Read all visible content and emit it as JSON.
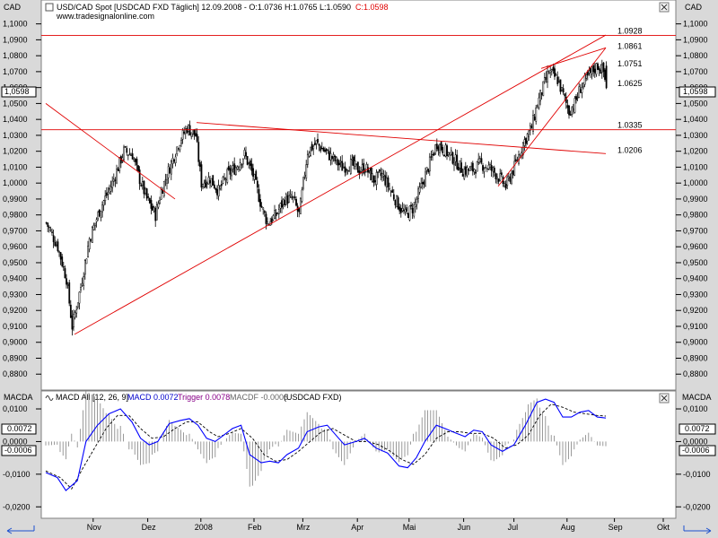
{
  "colors": {
    "up_candle": "#ffffff",
    "down_candle": "#000000",
    "trendline": "#e00000",
    "macd_line": "#0000ff",
    "trigger_line": "#000000",
    "histogram": "#808080",
    "hline": "#e00000"
  },
  "icons": {
    "nav_left": "left-arrow-icon",
    "nav_right": "right-arrow-icon",
    "indicator": "wave-icon"
  },
  "price_panel": {
    "axis_code_left": "CAD",
    "axis_code_right": "CAD",
    "title": "USD/CAD Spot [USDCAD FXD  Täglich] 12.09.2008 - O:1.0736 H:1.0765 L:1.0590",
    "close_label": "C:1.0598",
    "website": "www.tradesignalonline.com",
    "last_value": "1,0598",
    "hline_labels": [
      "1.0928",
      "1.0335"
    ],
    "trendline_labels": [
      "1.0861",
      "1.0751",
      "1.0625",
      "1.0206"
    ]
  },
  "macd_panel": {
    "axis_code_left": "MACDA",
    "axis_code_right": "MACDA",
    "title_prefix": "MACD All [12, 26, 9]",
    "macd_label": "MACD 0.0072",
    "trigger_label": "Trigger 0.0078",
    "macdf_label": "MACDF -0.0006",
    "symbol": "(USDCAD FXD)",
    "last_macd": "0.0072",
    "last_hist": "-0.0006"
  },
  "chart_data": [
    {
      "type": "candlestick",
      "title": "USD/CAD Spot [USDCAD FXD  Täglich] 12.09.2008",
      "ohlc_last": {
        "open": 1.0736,
        "high": 1.0765,
        "low": 1.059,
        "close": 1.0598
      },
      "ylim": [
        0.87,
        1.115
      ],
      "yticks": [
        "1,1000",
        "1,0900",
        "1,0800",
        "1,0700",
        "1,0600",
        "1,0500",
        "1,0400",
        "1,0300",
        "1,0200",
        "1,0100",
        "1,0000",
        "0,9900",
        "0,9800",
        "0,9700",
        "0,9600",
        "0,9500",
        "0,9400",
        "0,9300",
        "0,9200",
        "0,9100",
        "0,9000",
        "0,8900",
        "0,8800"
      ],
      "xticks": [
        "Nov",
        "Dez",
        "2008",
        "Feb",
        "Mrz",
        "Apr",
        "Mai",
        "Jun",
        "Jul",
        "Aug",
        "Sep",
        "Okt"
      ],
      "grid": false,
      "close_path": [
        [
          0,
          0.975
        ],
        [
          8,
          0.96
        ],
        [
          14,
          0.94
        ],
        [
          18,
          0.91
        ],
        [
          24,
          0.935
        ],
        [
          30,
          0.965
        ],
        [
          38,
          0.985
        ],
        [
          46,
          1.0
        ],
        [
          54,
          1.02
        ],
        [
          60,
          1.018
        ],
        [
          64,
          1.005
        ],
        [
          70,
          0.99
        ],
        [
          76,
          0.98
        ],
        [
          80,
          0.995
        ],
        [
          86,
          1.01
        ],
        [
          92,
          1.025
        ],
        [
          98,
          1.035
        ],
        [
          104,
          1.03
        ],
        [
          108,
          1.0
        ],
        [
          114,
          1.003
        ],
        [
          120,
          0.995
        ],
        [
          126,
          1.005
        ],
        [
          132,
          1.01
        ],
        [
          138,
          1.018
        ],
        [
          144,
          1.005
        ],
        [
          150,
          0.985
        ],
        [
          154,
          0.975
        ],
        [
          160,
          0.98
        ],
        [
          166,
          0.99
        ],
        [
          172,
          0.99
        ],
        [
          176,
          0.98
        ],
        [
          182,
          1.02
        ],
        [
          188,
          1.025
        ],
        [
          194,
          1.02
        ],
        [
          200,
          1.015
        ],
        [
          206,
          1.01
        ],
        [
          212,
          1.012
        ],
        [
          218,
          1.008
        ],
        [
          222,
          1.01
        ],
        [
          228,
          1.002
        ],
        [
          234,
          1.005
        ],
        [
          240,
          0.995
        ],
        [
          246,
          0.985
        ],
        [
          250,
          0.98
        ],
        [
          256,
          0.985
        ],
        [
          262,
          1.0
        ],
        [
          268,
          1.015
        ],
        [
          272,
          1.025
        ],
        [
          278,
          1.02
        ],
        [
          284,
          1.015
        ],
        [
          290,
          1.008
        ],
        [
          296,
          1.008
        ],
        [
          302,
          1.012
        ],
        [
          308,
          1.01
        ],
        [
          314,
          1.005
        ],
        [
          320,
          0.998
        ],
        [
          326,
          1.01
        ],
        [
          332,
          1.025
        ],
        [
          338,
          1.035
        ],
        [
          342,
          1.05
        ],
        [
          346,
          1.06
        ],
        [
          350,
          1.07
        ],
        [
          356,
          1.065
        ],
        [
          360,
          1.055
        ],
        [
          364,
          1.045
        ],
        [
          368,
          1.05
        ],
        [
          372,
          1.06
        ],
        [
          376,
          1.065
        ],
        [
          380,
          1.07
        ],
        [
          384,
          1.074
        ],
        [
          388,
          1.07
        ],
        [
          390,
          1.06
        ]
      ],
      "horizontal_lines": [
        1.0928,
        1.0335
      ],
      "trendlines": [
        {
          "from": [
            0,
            1.05
          ],
          "to": [
            90,
            0.99
          ]
        },
        {
          "from": [
            20,
            0.905
          ],
          "to": [
            390,
            1.093
          ]
        },
        {
          "from": [
            105,
            1.038
          ],
          "to": [
            390,
            1.0185
          ]
        },
        {
          "from": [
            345,
            1.072
          ],
          "to": [
            390,
            1.085
          ]
        },
        {
          "from": [
            315,
            0.998
          ],
          "to": [
            390,
            1.085
          ]
        }
      ]
    },
    {
      "type": "line",
      "title": "MACD All [12, 26, 9]",
      "ylim": [
        -0.0235,
        0.0155
      ],
      "yticks": [
        "0,0100",
        "0,0000",
        "-0,0100",
        "-0,0200"
      ],
      "series": [
        {
          "name": "MACD",
          "values": [
            [
              0,
              -0.0095
            ],
            [
              8,
              -0.011
            ],
            [
              14,
              -0.015
            ],
            [
              22,
              -0.012
            ],
            [
              28,
              0.0
            ],
            [
              36,
              0.005
            ],
            [
              44,
              0.0085
            ],
            [
              52,
              0.01
            ],
            [
              60,
              0.006
            ],
            [
              66,
              0.001
            ],
            [
              72,
              -0.001
            ],
            [
              78,
              0.0
            ],
            [
              86,
              0.0055
            ],
            [
              94,
              0.0065
            ],
            [
              100,
              0.007
            ],
            [
              106,
              0.005
            ],
            [
              112,
              0.001
            ],
            [
              118,
              0.0
            ],
            [
              124,
              0.002
            ],
            [
              130,
              0.004
            ],
            [
              136,
              0.005
            ],
            [
              142,
              -0.004
            ],
            [
              150,
              -0.0065
            ],
            [
              156,
              -0.006
            ],
            [
              162,
              -0.0065
            ],
            [
              168,
              -0.004
            ],
            [
              176,
              -0.002
            ],
            [
              182,
              0.003
            ],
            [
              190,
              0.0045
            ],
            [
              196,
              0.005
            ],
            [
              202,
              0.002
            ],
            [
              208,
              -0.001
            ],
            [
              216,
              0.0
            ],
            [
              222,
              0.001
            ],
            [
              230,
              -0.002
            ],
            [
              238,
              -0.0035
            ],
            [
              246,
              -0.0075
            ],
            [
              252,
              -0.008
            ],
            [
              258,
              -0.005
            ],
            [
              264,
              0.0
            ],
            [
              272,
              0.005
            ],
            [
              278,
              0.004
            ],
            [
              286,
              0.0025
            ],
            [
              292,
              0.0015
            ],
            [
              298,
              0.0035
            ],
            [
              304,
              0.003
            ],
            [
              310,
              -0.001
            ],
            [
              318,
              -0.003
            ],
            [
              326,
              -0.001
            ],
            [
              334,
              0.005
            ],
            [
              342,
              0.012
            ],
            [
              348,
              0.013
            ],
            [
              354,
              0.012
            ],
            [
              360,
              0.0075
            ],
            [
              366,
              0.0075
            ],
            [
              372,
              0.009
            ],
            [
              378,
              0.0095
            ],
            [
              384,
              0.0075
            ],
            [
              390,
              0.0072
            ]
          ]
        },
        {
          "name": "Trigger",
          "values": [
            [
              0,
              -0.009
            ],
            [
              10,
              -0.011
            ],
            [
              18,
              -0.0145
            ],
            [
              26,
              -0.008
            ],
            [
              34,
              -0.002
            ],
            [
              42,
              0.004
            ],
            [
              50,
              0.008
            ],
            [
              58,
              0.008
            ],
            [
              66,
              0.004
            ],
            [
              74,
              0.001
            ],
            [
              82,
              0.0015
            ],
            [
              90,
              0.004
            ],
            [
              98,
              0.006
            ],
            [
              106,
              0.006
            ],
            [
              114,
              0.003
            ],
            [
              120,
              0.0015
            ],
            [
              128,
              0.0025
            ],
            [
              136,
              0.004
            ],
            [
              144,
              0.001
            ],
            [
              152,
              -0.004
            ],
            [
              160,
              -0.006
            ],
            [
              168,
              -0.0055
            ],
            [
              176,
              -0.003
            ],
            [
              184,
              0.0
            ],
            [
              192,
              0.003
            ],
            [
              200,
              0.004
            ],
            [
              208,
              0.002
            ],
            [
              216,
              0.0
            ],
            [
              224,
              0.0
            ],
            [
              232,
              -0.001
            ],
            [
              240,
              -0.003
            ],
            [
              248,
              -0.0055
            ],
            [
              256,
              -0.007
            ],
            [
              264,
              -0.004
            ],
            [
              272,
              0.001
            ],
            [
              280,
              0.003
            ],
            [
              288,
              0.003
            ],
            [
              296,
              0.0025
            ],
            [
              304,
              0.0025
            ],
            [
              312,
              0.001
            ],
            [
              320,
              -0.002
            ],
            [
              328,
              -0.001
            ],
            [
              336,
              0.002
            ],
            [
              344,
              0.008
            ],
            [
              352,
              0.0115
            ],
            [
              360,
              0.0105
            ],
            [
              368,
              0.009
            ],
            [
              376,
              0.0085
            ],
            [
              384,
              0.008
            ],
            [
              390,
              0.0078
            ]
          ]
        }
      ]
    }
  ]
}
